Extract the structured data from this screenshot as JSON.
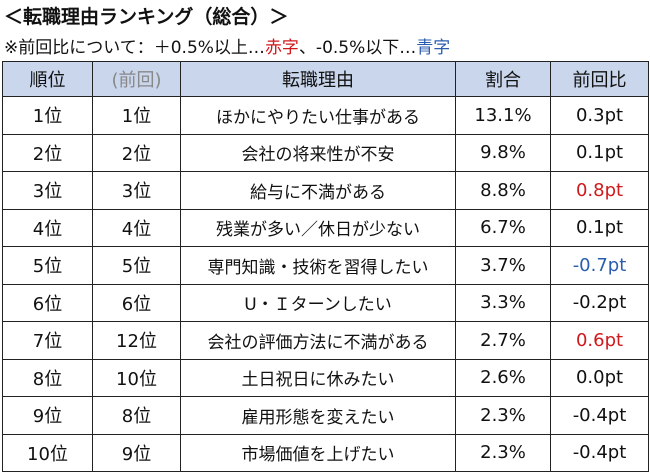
{
  "title": "＜転職理由ランキング（総合）＞",
  "note": {
    "prefix": "※前回比について：＋0.5%以上…",
    "red_word": "赤字",
    "middle": "、-0.5%以下…",
    "blue_word": "青字"
  },
  "colors": {
    "header_bg": "#c9d6ec",
    "red": "#d0191c",
    "blue": "#2a5db0"
  },
  "table": {
    "headers": [
      "順位",
      "(前回)",
      "転職理由",
      "割合",
      "前回比"
    ],
    "rows": [
      {
        "rank": "1位",
        "prev": "1位",
        "reason": "ほかにやりたい仕事がある",
        "share": "13.1%",
        "change": "0.3pt",
        "color": ""
      },
      {
        "rank": "2位",
        "prev": "2位",
        "reason": "会社の将来性が不安",
        "share": "9.8%",
        "change": "0.1pt",
        "color": ""
      },
      {
        "rank": "3位",
        "prev": "3位",
        "reason": "給与に不満がある",
        "share": "8.8%",
        "change": "0.8pt",
        "color": "red"
      },
      {
        "rank": "4位",
        "prev": "4位",
        "reason": "残業が多い／休日が少ない",
        "share": "6.7%",
        "change": "0.1pt",
        "color": ""
      },
      {
        "rank": "5位",
        "prev": "5位",
        "reason": "専門知識・技術を習得したい",
        "share": "3.7%",
        "change": "-0.7pt",
        "color": "blue"
      },
      {
        "rank": "6位",
        "prev": "6位",
        "reason": "U・Ｉターンしたい",
        "share": "3.3%",
        "change": "-0.2pt",
        "color": ""
      },
      {
        "rank": "7位",
        "prev": "12位",
        "reason": "会社の評価方法に不満がある",
        "share": "2.7%",
        "change": "0.6pt",
        "color": "red"
      },
      {
        "rank": "8位",
        "prev": "10位",
        "reason": "土日祝日に休みたい",
        "share": "2.6%",
        "change": "0.0pt",
        "color": ""
      },
      {
        "rank": "9位",
        "prev": "8位",
        "reason": "雇用形態を変えたい",
        "share": "2.3%",
        "change": "-0.4pt",
        "color": ""
      },
      {
        "rank": "10位",
        "prev": "9位",
        "reason": "市場価値を上げたい",
        "share": "2.3%",
        "change": "-0.4pt",
        "color": ""
      }
    ]
  }
}
